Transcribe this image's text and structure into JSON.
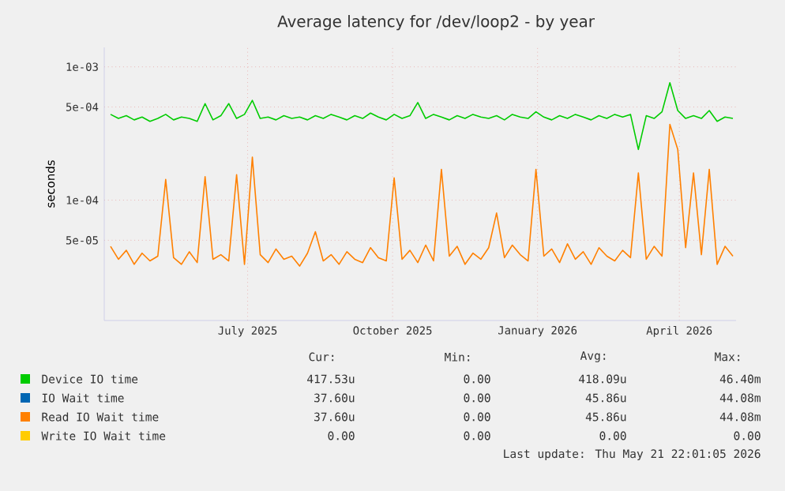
{
  "chart_data": {
    "type": "line",
    "title": "Average latency for /dev/loop2 - by year",
    "ylabel": "seconds",
    "log": "y",
    "grid": true,
    "legend": "bottom",
    "xlim": [
      "2025-04-01",
      "2026-05-07"
    ],
    "xticks": [
      {
        "value": "2025-07-01",
        "label": "July 2025"
      },
      {
        "value": "2025-10-01",
        "label": "October 2025"
      },
      {
        "value": "2026-01-01",
        "label": "January 2026"
      },
      {
        "value": "2026-04-01",
        "label": "April 2026"
      }
    ],
    "ylim": [
      1.25e-05,
      0.0014
    ],
    "yticks": [
      {
        "value": 0.001,
        "label": "1e-03"
      },
      {
        "value": 0.0005,
        "label": "5e-04"
      },
      {
        "value": 0.0001,
        "label": "1e-04"
      },
      {
        "value": 5e-05,
        "label": "5e-05"
      }
    ],
    "x": [
      "2025-04-05",
      "2025-04-10",
      "2025-04-15",
      "2025-04-20",
      "2025-04-25",
      "2025-04-30",
      "2025-05-05",
      "2025-05-10",
      "2025-05-15",
      "2025-05-20",
      "2025-05-25",
      "2025-05-30",
      "2025-06-04",
      "2025-06-09",
      "2025-06-14",
      "2025-06-19",
      "2025-06-24",
      "2025-06-29",
      "2025-07-04",
      "2025-07-09",
      "2025-07-14",
      "2025-07-19",
      "2025-07-24",
      "2025-07-29",
      "2025-08-03",
      "2025-08-08",
      "2025-08-13",
      "2025-08-18",
      "2025-08-23",
      "2025-08-28",
      "2025-09-02",
      "2025-09-07",
      "2025-09-12",
      "2025-09-17",
      "2025-09-22",
      "2025-09-27",
      "2025-10-02",
      "2025-10-07",
      "2025-10-12",
      "2025-10-17",
      "2025-10-22",
      "2025-10-27",
      "2025-11-01",
      "2025-11-06",
      "2025-11-11",
      "2025-11-16",
      "2025-11-21",
      "2025-11-26",
      "2025-12-01",
      "2025-12-06",
      "2025-12-11",
      "2025-12-16",
      "2025-12-21",
      "2025-12-26",
      "2025-12-31",
      "2026-01-05",
      "2026-01-10",
      "2026-01-15",
      "2026-01-20",
      "2026-01-25",
      "2026-01-30",
      "2026-02-04",
      "2026-02-09",
      "2026-02-14",
      "2026-02-19",
      "2026-02-24",
      "2026-03-01",
      "2026-03-06",
      "2026-03-11",
      "2026-03-16",
      "2026-03-21",
      "2026-03-26",
      "2026-03-31",
      "2026-04-05",
      "2026-04-10",
      "2026-04-15",
      "2026-04-20",
      "2026-04-25",
      "2026-04-30",
      "2026-05-05"
    ],
    "series": [
      {
        "name": "Device IO time",
        "color": "#00cc00",
        "values": [
          0.00044,
          0.00041,
          0.00043,
          0.0004,
          0.00042,
          0.00039,
          0.00041,
          0.00044,
          0.0004,
          0.00042,
          0.00041,
          0.00039,
          0.00053,
          0.0004,
          0.00043,
          0.00053,
          0.00041,
          0.00044,
          0.00056,
          0.00041,
          0.00042,
          0.0004,
          0.00043,
          0.00041,
          0.00042,
          0.0004,
          0.00043,
          0.00041,
          0.00044,
          0.00042,
          0.0004,
          0.00043,
          0.00041,
          0.00045,
          0.00042,
          0.0004,
          0.00044,
          0.00041,
          0.00043,
          0.00054,
          0.00041,
          0.00044,
          0.00042,
          0.0004,
          0.00043,
          0.00041,
          0.00044,
          0.00042,
          0.00041,
          0.00043,
          0.0004,
          0.00044,
          0.00042,
          0.00041,
          0.00046,
          0.00042,
          0.0004,
          0.00043,
          0.00041,
          0.00044,
          0.00042,
          0.0004,
          0.00043,
          0.00041,
          0.00044,
          0.00042,
          0.00044,
          0.00024,
          0.00043,
          0.00041,
          0.00046,
          0.00076,
          0.00047,
          0.00041,
          0.00043,
          0.00041,
          0.00047,
          0.00039,
          0.00042,
          0.00041
        ]
      },
      {
        "name": "IO Wait time",
        "color": "#0066b3",
        "values": [
          null,
          null,
          null,
          null,
          null,
          null,
          null,
          null,
          null,
          null,
          null,
          null,
          null,
          null,
          null,
          null,
          null,
          null,
          null,
          null,
          null,
          null,
          null,
          null,
          null,
          null,
          null,
          null,
          null,
          null,
          null,
          null,
          null,
          null,
          null,
          null,
          null,
          null,
          null,
          null,
          null,
          null,
          null,
          null,
          null,
          null,
          null,
          null,
          null,
          null,
          null,
          null,
          null,
          null,
          null,
          null,
          null,
          null,
          null,
          null,
          null,
          null,
          null,
          null,
          null,
          null,
          null,
          null,
          null,
          null,
          null,
          null,
          null,
          null,
          null,
          null,
          null,
          null,
          null,
          null
        ]
      },
      {
        "name": "Read IO Wait time",
        "color": "#ff8000",
        "values": [
          4.5e-05,
          3.6e-05,
          4.2e-05,
          3.3e-05,
          4e-05,
          3.5e-05,
          3.8e-05,
          0.000143,
          3.7e-05,
          3.3e-05,
          4.1e-05,
          3.4e-05,
          0.00015,
          3.6e-05,
          3.9e-05,
          3.5e-05,
          0.000155,
          3.3e-05,
          0.00021,
          3.9e-05,
          3.4e-05,
          4.3e-05,
          3.6e-05,
          3.8e-05,
          3.2e-05,
          4e-05,
          5.8e-05,
          3.5e-05,
          3.9e-05,
          3.3e-05,
          4.1e-05,
          3.6e-05,
          3.4e-05,
          4.4e-05,
          3.7e-05,
          3.5e-05,
          0.000147,
          3.6e-05,
          4.2e-05,
          3.4e-05,
          4.6e-05,
          3.5e-05,
          0.00017,
          3.8e-05,
          4.5e-05,
          3.3e-05,
          4e-05,
          3.6e-05,
          4.4e-05,
          8e-05,
          3.7e-05,
          4.6e-05,
          3.9e-05,
          3.5e-05,
          0.00017,
          3.8e-05,
          4.3e-05,
          3.4e-05,
          4.7e-05,
          3.6e-05,
          4.1e-05,
          3.3e-05,
          4.4e-05,
          3.8e-05,
          3.5e-05,
          4.2e-05,
          3.7e-05,
          0.00016,
          3.6e-05,
          4.5e-05,
          3.8e-05,
          0.00037,
          0.00024,
          4.4e-05,
          0.00016,
          3.9e-05,
          0.00017,
          3.3e-05,
          4.5e-05,
          3.8e-05
        ]
      },
      {
        "name": "Write IO Wait time",
        "color": "#ffcc00",
        "values": [
          null,
          null,
          null,
          null,
          null,
          null,
          null,
          null,
          null,
          null,
          null,
          null,
          null,
          null,
          null,
          null,
          null,
          null,
          null,
          null,
          null,
          null,
          null,
          null,
          null,
          null,
          null,
          null,
          null,
          null,
          null,
          null,
          null,
          null,
          null,
          null,
          null,
          null,
          null,
          null,
          null,
          null,
          null,
          null,
          null,
          null,
          null,
          null,
          null,
          null,
          null,
          null,
          null,
          null,
          null,
          null,
          null,
          null,
          null,
          null,
          null,
          null,
          null,
          null,
          null,
          null,
          null,
          null,
          null,
          null,
          null,
          null,
          null,
          null,
          null,
          null,
          null,
          null,
          null,
          null
        ]
      }
    ],
    "annotations": [
      "Cur:",
      "Min:",
      "Avg:",
      "Max:",
      "417.53u",
      "0.00",
      "418.09u",
      "46.40m",
      "37.60u",
      "0.00",
      "45.86u",
      "44.08m",
      "37.60u",
      "0.00",
      "45.86u",
      "44.08m",
      "0.00",
      "0.00",
      "0.00",
      "0.00",
      "Last update: Thu May 21 22:01:05 2026"
    ]
  }
}
